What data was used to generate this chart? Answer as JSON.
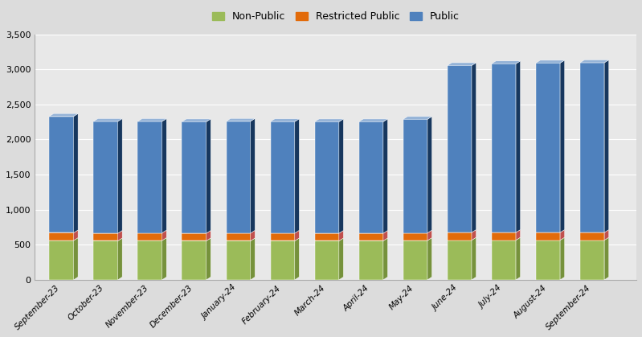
{
  "categories": [
    "September-23",
    "October-23",
    "November-23",
    "December-23",
    "January-24",
    "February-24",
    "March-24",
    "April-24",
    "May-24",
    "June-24",
    "July-24",
    "August-24",
    "September-24"
  ],
  "non_public": [
    560,
    555,
    560,
    555,
    555,
    555,
    555,
    555,
    560,
    565,
    565,
    565,
    565
  ],
  "restricted_public": [
    110,
    108,
    108,
    108,
    110,
    110,
    108,
    108,
    108,
    110,
    110,
    110,
    110
  ],
  "public": [
    1660,
    1595,
    1590,
    1590,
    1595,
    1590,
    1590,
    1590,
    1620,
    2380,
    2405,
    2415,
    2420
  ],
  "colors": {
    "non_public_front": "#9BBB59",
    "non_public_side": "#76923C",
    "non_public_top": "#C4D79B",
    "restricted_front": "#E26B0A",
    "restricted_side": "#C0504D",
    "restricted_top": "#FAC090",
    "public_front": "#4F81BD",
    "public_side": "#17375E",
    "public_top": "#95B3D7"
  },
  "ylim": [
    0,
    3500
  ],
  "yticks": [
    0,
    500,
    1000,
    1500,
    2000,
    2500,
    3000,
    3500
  ],
  "background_color": "#DCDCDC",
  "plot_bg": "#E8E8E8",
  "grid_color": "#FFFFFF"
}
